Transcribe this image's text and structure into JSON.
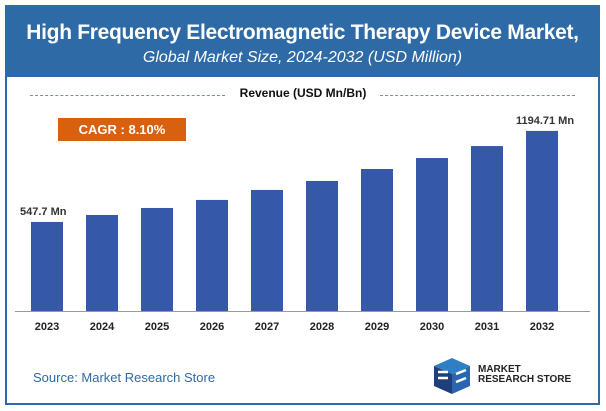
{
  "header": {
    "title": "High Frequency Electromagnetic Therapy Device Market,",
    "subtitle": "Global Market Size, 2024-2032 (USD Million)"
  },
  "cagr": "CAGR : 8.10%",
  "source": "Source: Market Research Store",
  "logo": {
    "line1": "MARKET",
    "line2": "RESEARCH STORE"
  },
  "colors": {
    "bar": "#3558a8",
    "header": "#2e6aa6",
    "cagr": "#d9600f"
  },
  "chart_data": {
    "type": "bar",
    "title": "Revenue (USD Mn/Bn)",
    "categories": [
      "2023",
      "2024",
      "2025",
      "2026",
      "2027",
      "2028",
      "2029",
      "2030",
      "2031",
      "2032"
    ],
    "values": [
      547.7,
      597,
      647,
      704,
      775,
      839,
      924,
      1002,
      1087,
      1194.71
    ],
    "data_labels": {
      "first": "547.7 Mn",
      "last": "1194.71 Mn"
    },
    "grid": false
  }
}
